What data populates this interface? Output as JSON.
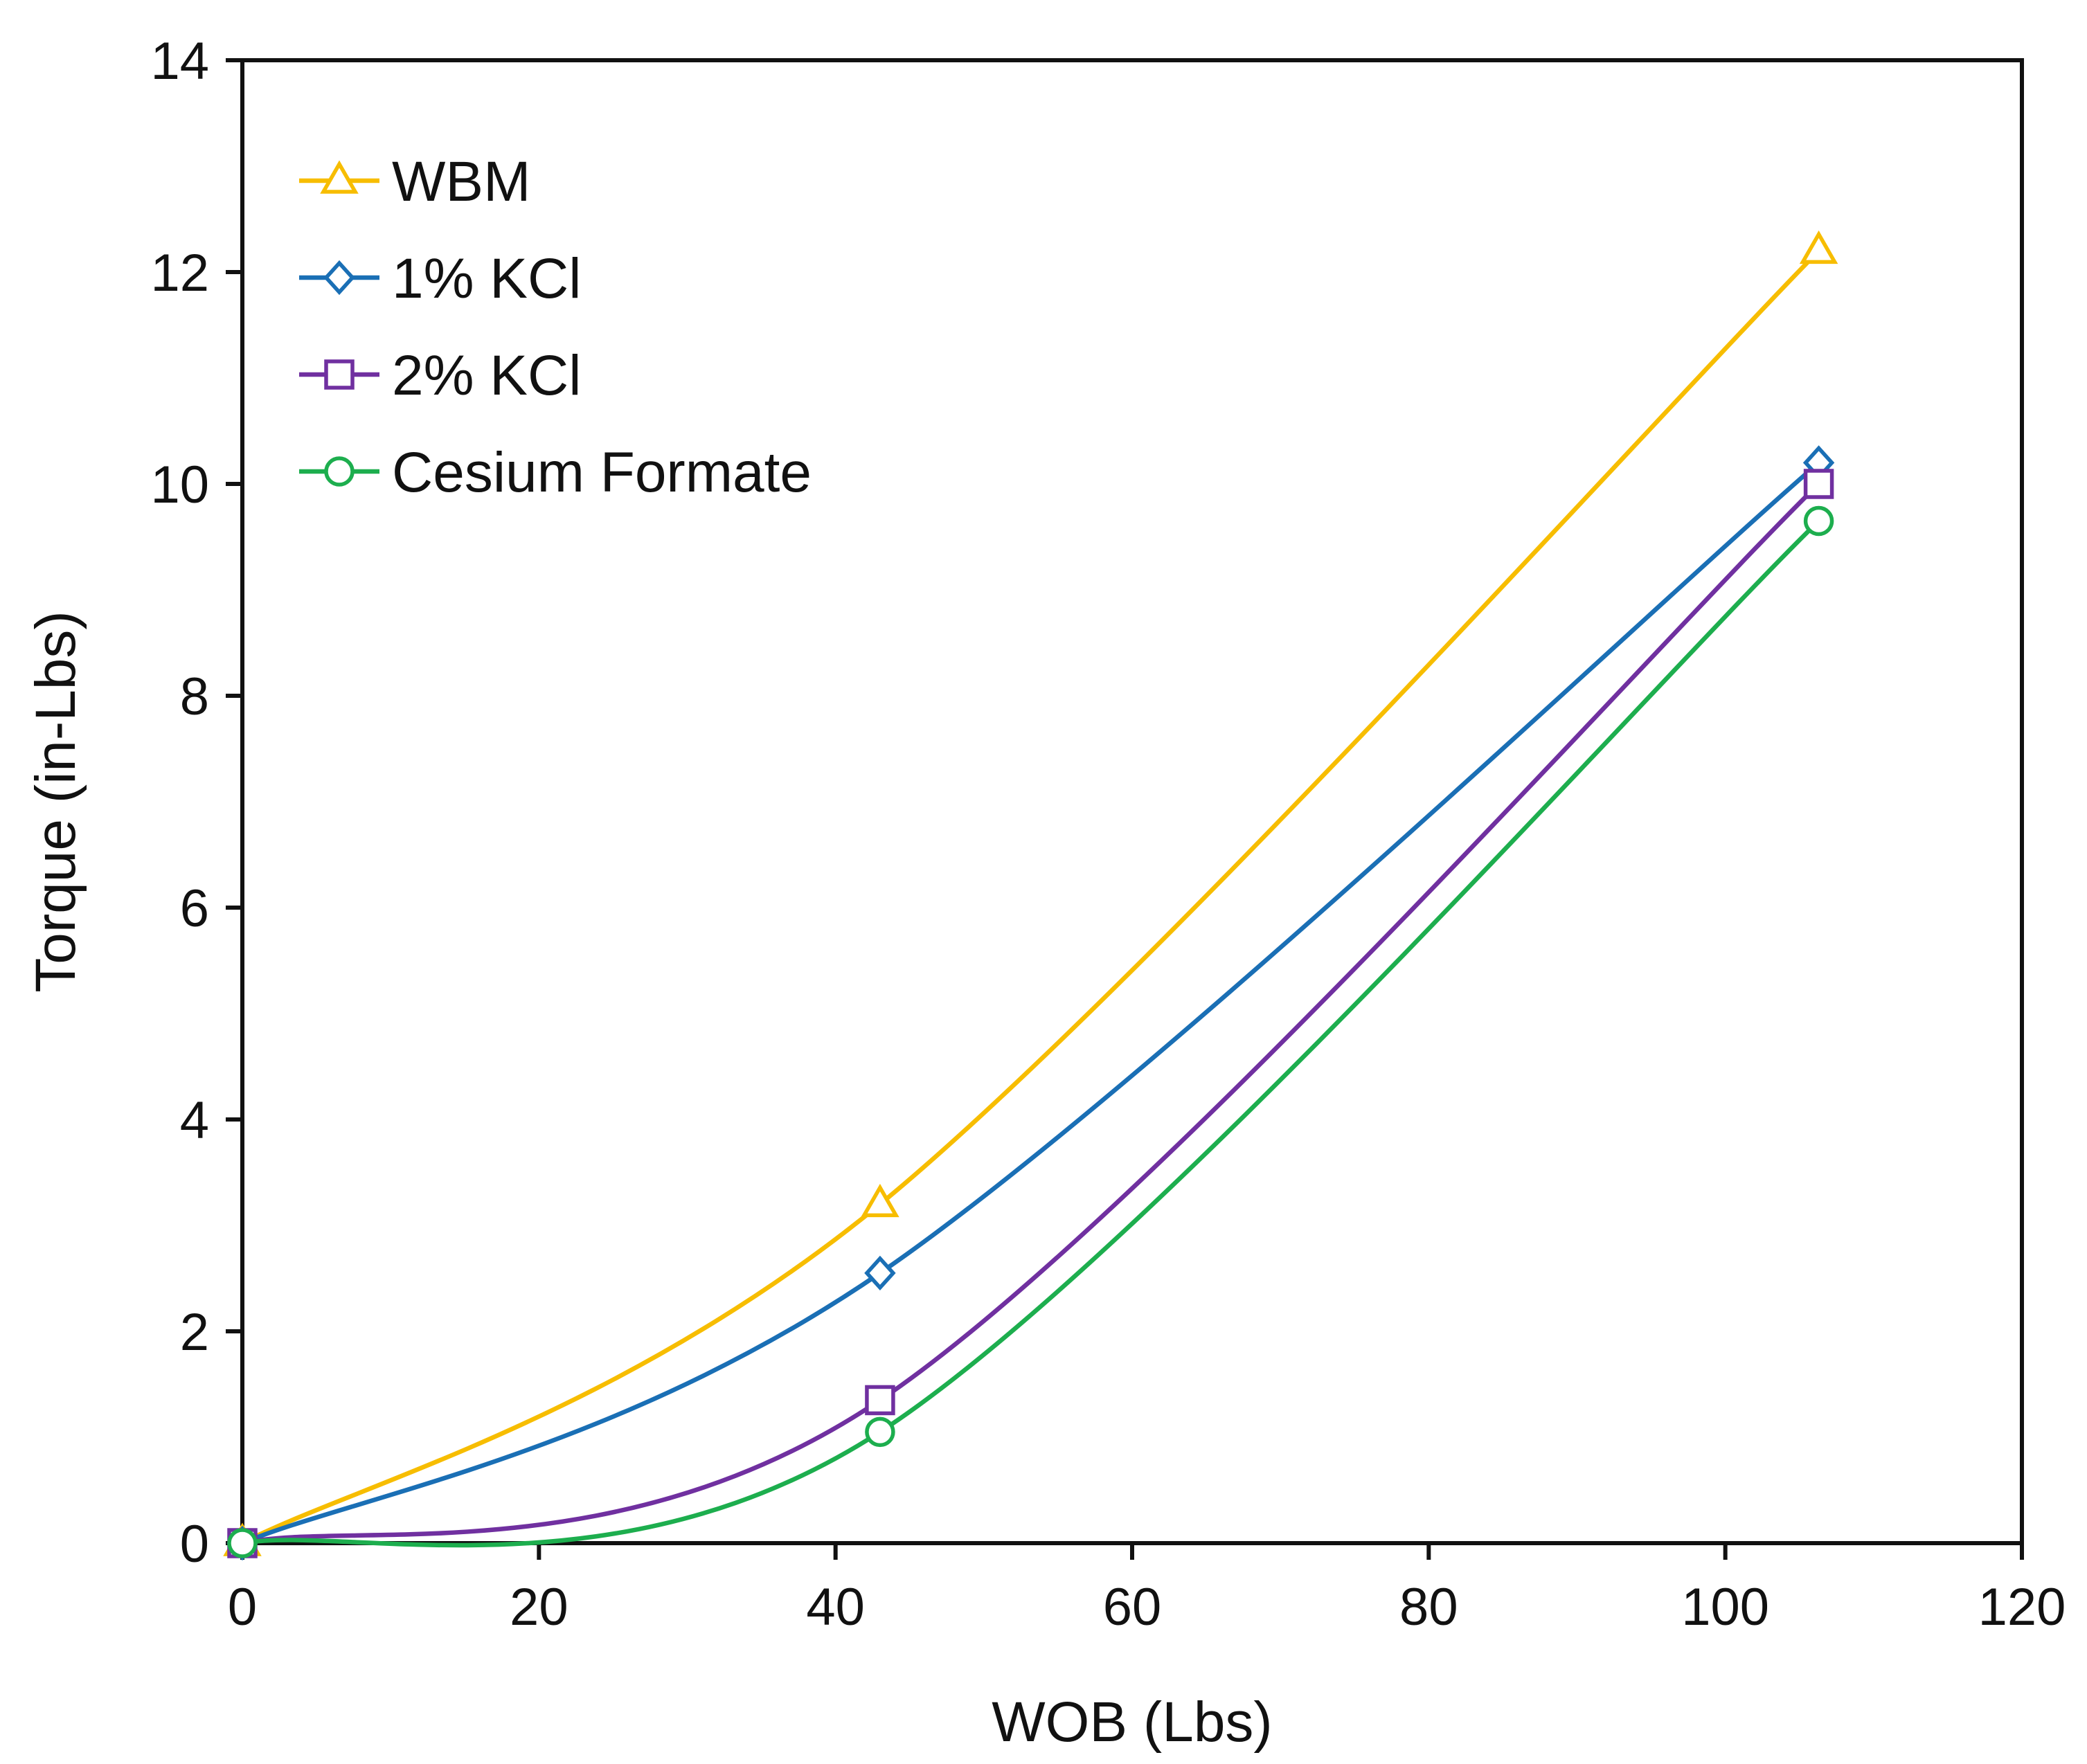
{
  "chart_data": {
    "type": "line",
    "smooth": true,
    "title": "",
    "xlabel": "WOB (Lbs)",
    "ylabel": "Torque (in-Lbs)",
    "xlim": [
      0,
      120
    ],
    "ylim": [
      0,
      14
    ],
    "xticks": [
      0,
      20,
      40,
      60,
      80,
      100,
      120
    ],
    "yticks": [
      0,
      2,
      4,
      6,
      8,
      10,
      12,
      14
    ],
    "grid": false,
    "legend_position": "top-left",
    "series": [
      {
        "name": "WBM",
        "color": "#F7BD00",
        "marker": "triangle",
        "x": [
          0,
          43,
          106.3
        ],
        "y": [
          0,
          3.2,
          12.2
        ]
      },
      {
        "name": "1% KCl",
        "color": "#1A6FB5",
        "marker": "diamond",
        "x": [
          0,
          43,
          106.3
        ],
        "y": [
          0,
          2.55,
          10.2
        ]
      },
      {
        "name": "2% KCl",
        "color": "#7030A0",
        "marker": "square",
        "x": [
          0,
          43,
          106.3
        ],
        "y": [
          0,
          1.35,
          10.0
        ]
      },
      {
        "name": "Cesium Formate",
        "color": "#1DAE4E",
        "marker": "circle",
        "x": [
          0,
          43,
          106.3
        ],
        "y": [
          0,
          1.05,
          9.65
        ]
      }
    ]
  }
}
